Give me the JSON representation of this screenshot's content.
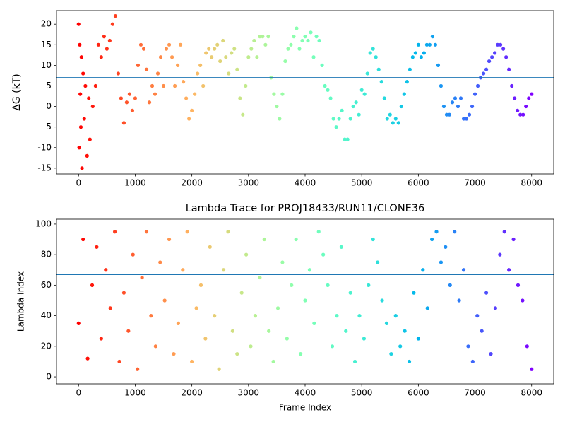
{
  "chart_data": [
    {
      "type": "scatter",
      "ylabel": "ΔG (kT)",
      "colormap": "rainbow_r",
      "hline": 7,
      "hline_color": "#1f77b4",
      "xlim": [
        -390,
        8390
      ],
      "ylim": [
        -16.4,
        23.3
      ],
      "xticks": [
        0,
        1000,
        2000,
        3000,
        4000,
        5000,
        6000,
        7000,
        8000
      ],
      "yticks": [
        -15,
        -10,
        -5,
        0,
        5,
        10,
        15,
        20
      ],
      "x": [
        0,
        10,
        20,
        30,
        40,
        50,
        60,
        80,
        100,
        120,
        150,
        180,
        200,
        250,
        300,
        350,
        400,
        450,
        500,
        550,
        600,
        650,
        700,
        750,
        800,
        850,
        900,
        950,
        1000,
        1050,
        1100,
        1150,
        1200,
        1250,
        1300,
        1350,
        1400,
        1450,
        1500,
        1550,
        1600,
        1650,
        1700,
        1750,
        1800,
        1850,
        1900,
        1950,
        2000,
        2050,
        2100,
        2150,
        2200,
        2250,
        2300,
        2350,
        2400,
        2450,
        2500,
        2550,
        2600,
        2650,
        2700,
        2750,
        2800,
        2850,
        2900,
        2950,
        3000,
        3050,
        3100,
        3150,
        3200,
        3250,
        3300,
        3350,
        3400,
        3450,
        3500,
        3550,
        3600,
        3650,
        3700,
        3750,
        3800,
        3850,
        3900,
        3950,
        4000,
        4050,
        4100,
        4150,
        4200,
        4250,
        4300,
        4350,
        4400,
        4450,
        4500,
        4550,
        4600,
        4650,
        4700,
        4750,
        4800,
        4850,
        4900,
        4950,
        5000,
        5050,
        5100,
        5150,
        5200,
        5250,
        5300,
        5350,
        5400,
        5450,
        5500,
        5550,
        5600,
        5650,
        5700,
        5750,
        5800,
        5850,
        5900,
        5950,
        6000,
        6050,
        6100,
        6150,
        6200,
        6250,
        6300,
        6350,
        6400,
        6450,
        6500,
        6550,
        6600,
        6650,
        6700,
        6750,
        6800,
        6850,
        6900,
        6950,
        7000,
        7050,
        7100,
        7150,
        7200,
        7250,
        7300,
        7350,
        7400,
        7450,
        7500,
        7550,
        7600,
        7650,
        7700,
        7750,
        7800,
        7850,
        7900,
        7950,
        8000
      ],
      "values": [
        20,
        -10,
        15,
        3,
        -5,
        12,
        -15,
        8,
        -3,
        5,
        -12,
        2,
        -8,
        0,
        5,
        15,
        12,
        17,
        14,
        16,
        20,
        22,
        8,
        2,
        -4,
        1,
        3,
        -1,
        2,
        10,
        15,
        14,
        9,
        1,
        5,
        3,
        8,
        12,
        5,
        14,
        15,
        12,
        5,
        10,
        15,
        6,
        2,
        -3,
        -1,
        3,
        8,
        10,
        5,
        13,
        14,
        12,
        14,
        15,
        11,
        16,
        12,
        8,
        13,
        14,
        9,
        2,
        -2,
        5,
        12,
        14,
        16,
        12,
        17,
        17,
        15,
        17,
        7,
        3,
        0,
        -3,
        3,
        11,
        14,
        15,
        17,
        19,
        14,
        16,
        17,
        16,
        18,
        12,
        17,
        16,
        10,
        5,
        4,
        2,
        -3,
        -5,
        -3,
        -1,
        -8,
        -8,
        -3,
        0,
        1,
        -2,
        4,
        3,
        8,
        13,
        14,
        12,
        9,
        6,
        2,
        -3,
        -2,
        -4,
        -3,
        -4,
        0,
        3,
        6,
        9,
        12,
        13,
        15,
        12,
        13,
        15,
        15,
        17,
        15,
        10,
        5,
        0,
        -2,
        -2,
        1,
        2,
        0,
        2,
        -3,
        -3,
        -2,
        0,
        3,
        5,
        7,
        8,
        9,
        11,
        12,
        13,
        15,
        15,
        14,
        12,
        9,
        5,
        2,
        -1,
        -2,
        -2,
        0,
        2,
        3
      ]
    },
    {
      "type": "scatter",
      "title": "Lambda Trace for PROJ18433/RUN11/CLONE36",
      "xlabel": "Frame Index",
      "ylabel": "Lambda Index",
      "colormap": "rainbow_r",
      "hline": 67,
      "hline_color": "#1f77b4",
      "xlim": [
        -390,
        8390
      ],
      "ylim": [
        -4.6,
        103.2
      ],
      "xticks": [
        0,
        1000,
        2000,
        3000,
        4000,
        5000,
        6000,
        7000,
        8000
      ],
      "yticks": [
        0,
        20,
        40,
        60,
        80,
        100
      ],
      "x": [
        0,
        80,
        160,
        240,
        320,
        400,
        480,
        560,
        640,
        720,
        800,
        880,
        960,
        1040,
        1120,
        1200,
        1280,
        1360,
        1440,
        1520,
        1600,
        1680,
        1760,
        1840,
        1920,
        2000,
        2080,
        2160,
        2240,
        2320,
        2400,
        2480,
        2560,
        2640,
        2720,
        2800,
        2880,
        2960,
        3040,
        3120,
        3200,
        3280,
        3360,
        3440,
        3520,
        3600,
        3680,
        3760,
        3840,
        3920,
        4000,
        4080,
        4160,
        4240,
        4320,
        4400,
        4480,
        4560,
        4640,
        4720,
        4800,
        4880,
        4960,
        5040,
        5120,
        5200,
        5280,
        5360,
        5440,
        5520,
        5600,
        5680,
        5760,
        5840,
        5920,
        6000,
        6080,
        6160,
        6240,
        6320,
        6400,
        6480,
        6560,
        6640,
        6720,
        6800,
        6880,
        6960,
        7040,
        7120,
        7200,
        7280,
        7360,
        7440,
        7520,
        7600,
        7680,
        7760,
        7840,
        7920,
        8000
      ],
      "values": [
        35,
        90,
        12,
        60,
        85,
        25,
        70,
        45,
        95,
        10,
        55,
        30,
        80,
        5,
        65,
        95,
        40,
        20,
        75,
        50,
        90,
        15,
        35,
        70,
        95,
        10,
        45,
        60,
        25,
        85,
        40,
        5,
        70,
        95,
        30,
        15,
        55,
        80,
        20,
        40,
        65,
        90,
        30,
        10,
        45,
        75,
        25,
        60,
        90,
        15,
        50,
        70,
        35,
        95,
        80,
        60,
        20,
        40,
        85,
        30,
        55,
        10,
        40,
        25,
        60,
        90,
        75,
        50,
        35,
        15,
        40,
        20,
        30,
        10,
        55,
        25,
        70,
        45,
        90,
        95,
        75,
        85,
        60,
        95,
        50,
        70,
        20,
        10,
        40,
        30,
        55,
        15,
        45,
        80,
        95,
        70,
        90,
        60,
        50,
        20,
        5
      ]
    }
  ]
}
